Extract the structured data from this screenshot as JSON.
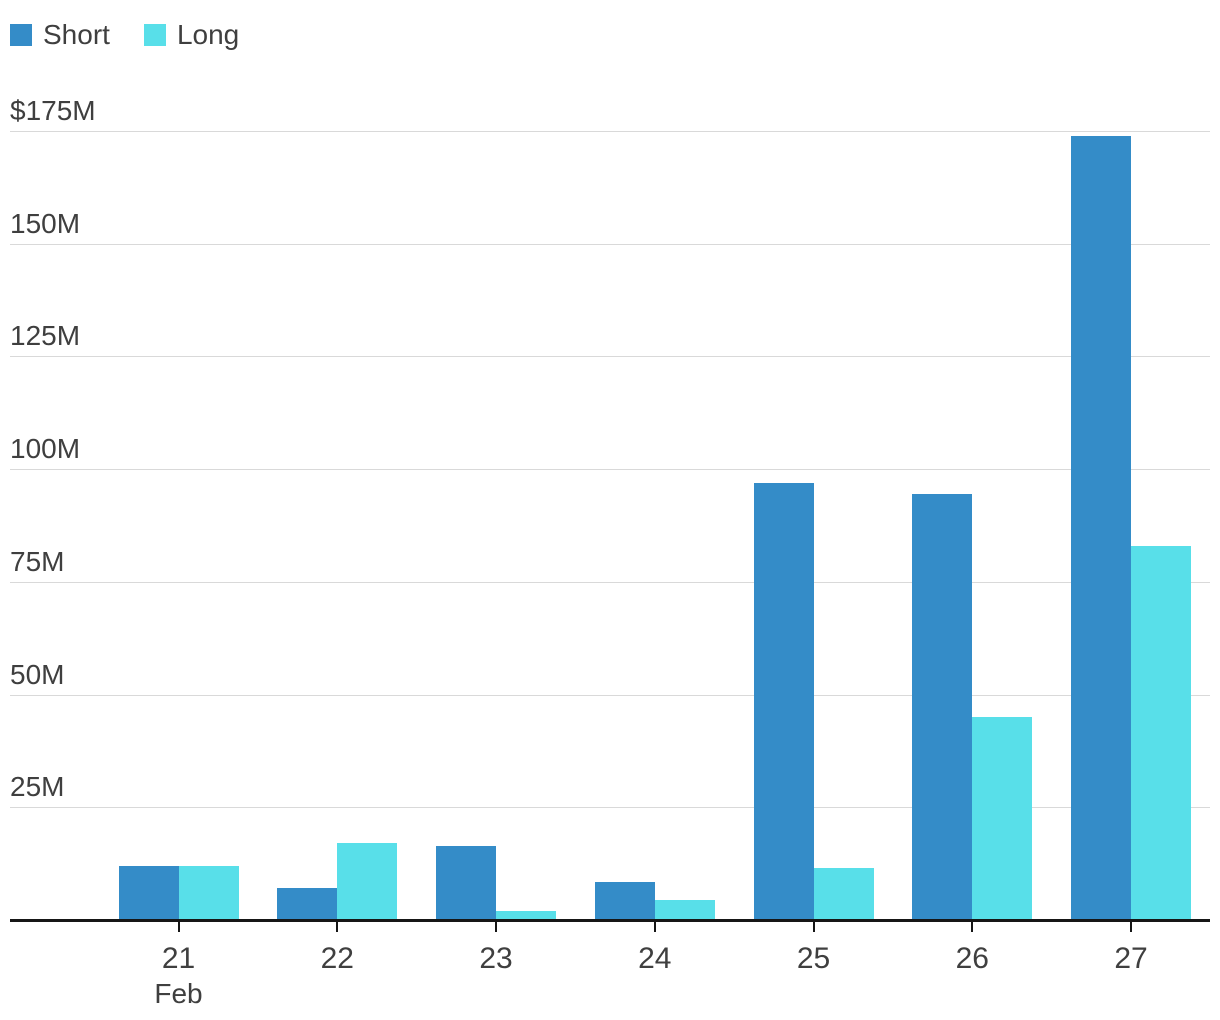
{
  "legend": {
    "items": [
      {
        "label": "Short",
        "color": "#348cc8"
      },
      {
        "label": "Long",
        "color": "#58dfe9"
      }
    ]
  },
  "chart_data": {
    "type": "bar",
    "title": "",
    "categories": [
      "21",
      "22",
      "23",
      "24",
      "25",
      "26",
      "27"
    ],
    "x_axis_month_label": "Feb",
    "series": [
      {
        "name": "Short",
        "color": "#348cc8",
        "values": [
          12,
          7,
          16.5,
          8.5,
          97,
          94.5,
          174
        ]
      },
      {
        "name": "Long",
        "color": "#58dfe9",
        "values": [
          12,
          17,
          2,
          4.5,
          11.5,
          45,
          83
        ]
      }
    ],
    "y_ticks": [
      {
        "value": 175,
        "label": "$175M"
      },
      {
        "value": 150,
        "label": "150M"
      },
      {
        "value": 125,
        "label": "125M"
      },
      {
        "value": 100,
        "label": "100M"
      },
      {
        "value": 75,
        "label": "75M"
      },
      {
        "value": 50,
        "label": "50M"
      },
      {
        "value": 25,
        "label": "25M"
      }
    ],
    "ylim": [
      0,
      175
    ],
    "unit": "USD millions",
    "grid": "horizontal",
    "legend_position": "top-left"
  },
  "colors": {
    "grid_line": "#d9d9d9",
    "axis_line": "#161616",
    "text": "#3f3f3f",
    "background": "#ffffff"
  }
}
